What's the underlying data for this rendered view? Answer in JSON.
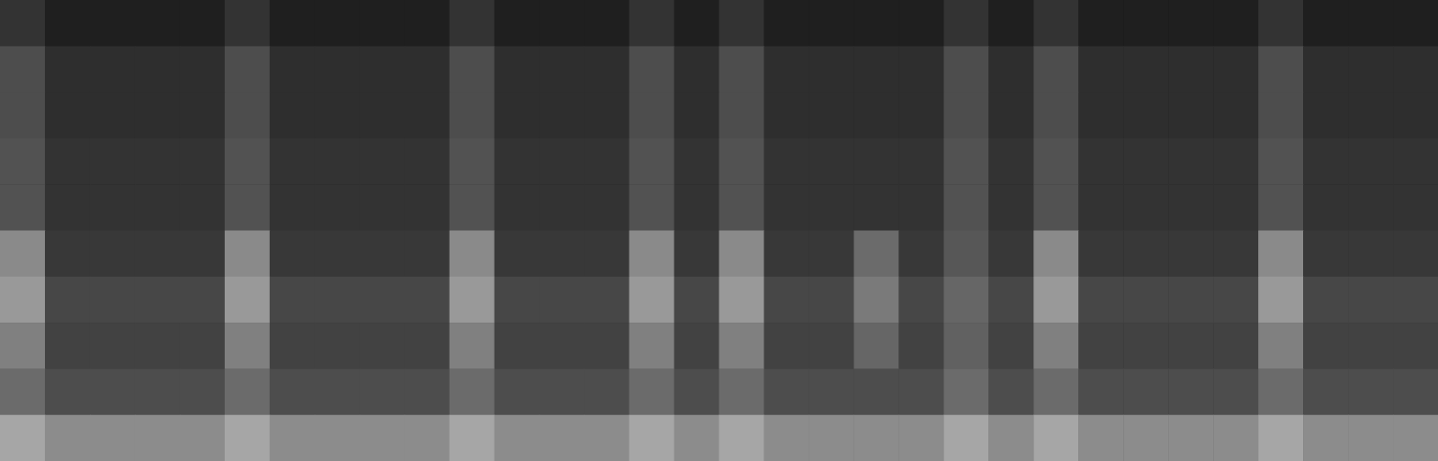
{
  "chart_data": {
    "type": "heatmap",
    "tick_labels": false,
    "zlim": [
      0,
      100
    ],
    "cells": [
      [
        20,
        12,
        12,
        12,
        12,
        20,
        12,
        12,
        12,
        12,
        20,
        12,
        12,
        12,
        20,
        12,
        20,
        12,
        12,
        12,
        12,
        20,
        12,
        20,
        12,
        12,
        12,
        12,
        20,
        12,
        12,
        12
      ],
      [
        30,
        18,
        18,
        18,
        18,
        30,
        18,
        18,
        18,
        18,
        30,
        18,
        18,
        18,
        30,
        18,
        30,
        18,
        18,
        18,
        18,
        30,
        18,
        30,
        18,
        18,
        18,
        18,
        30,
        18,
        18,
        18
      ],
      [
        30,
        18,
        18,
        18,
        18,
        30,
        18,
        18,
        18,
        18,
        30,
        18,
        18,
        18,
        30,
        18,
        30,
        18,
        18,
        18,
        18,
        30,
        18,
        30,
        18,
        18,
        18,
        18,
        30,
        18,
        18,
        18
      ],
      [
        32,
        20,
        20,
        20,
        20,
        32,
        20,
        20,
        20,
        20,
        32,
        20,
        20,
        20,
        32,
        20,
        32,
        20,
        20,
        20,
        20,
        32,
        20,
        32,
        20,
        20,
        20,
        20,
        32,
        20,
        20,
        20
      ],
      [
        32,
        20,
        20,
        20,
        20,
        32,
        20,
        20,
        20,
        20,
        32,
        20,
        20,
        20,
        32,
        20,
        32,
        20,
        20,
        20,
        20,
        32,
        20,
        32,
        20,
        20,
        20,
        20,
        32,
        20,
        20,
        20
      ],
      [
        54,
        22,
        22,
        22,
        22,
        54,
        22,
        22,
        22,
        22,
        54,
        22,
        22,
        22,
        54,
        22,
        54,
        22,
        22,
        42,
        22,
        34,
        22,
        54,
        22,
        22,
        22,
        22,
        54,
        22,
        22,
        22
      ],
      [
        60,
        28,
        28,
        28,
        28,
        60,
        28,
        28,
        28,
        28,
        60,
        28,
        28,
        28,
        60,
        28,
        60,
        28,
        28,
        48,
        28,
        40,
        28,
        60,
        28,
        28,
        28,
        28,
        60,
        28,
        28,
        28
      ],
      [
        50,
        26,
        26,
        26,
        26,
        50,
        26,
        26,
        26,
        26,
        50,
        26,
        26,
        26,
        50,
        26,
        50,
        26,
        26,
        40,
        26,
        38,
        26,
        50,
        26,
        26,
        26,
        26,
        50,
        26,
        26,
        26
      ],
      [
        42,
        30,
        30,
        30,
        30,
        42,
        30,
        30,
        30,
        30,
        42,
        30,
        30,
        30,
        42,
        30,
        42,
        30,
        30,
        30,
        30,
        42,
        30,
        42,
        30,
        30,
        30,
        30,
        42,
        30,
        30,
        30
      ],
      [
        65,
        55,
        55,
        55,
        55,
        65,
        55,
        55,
        55,
        55,
        65,
        55,
        55,
        55,
        65,
        55,
        65,
        55,
        55,
        55,
        55,
        65,
        55,
        65,
        55,
        55,
        55,
        55,
        65,
        55,
        55,
        55
      ]
    ]
  }
}
